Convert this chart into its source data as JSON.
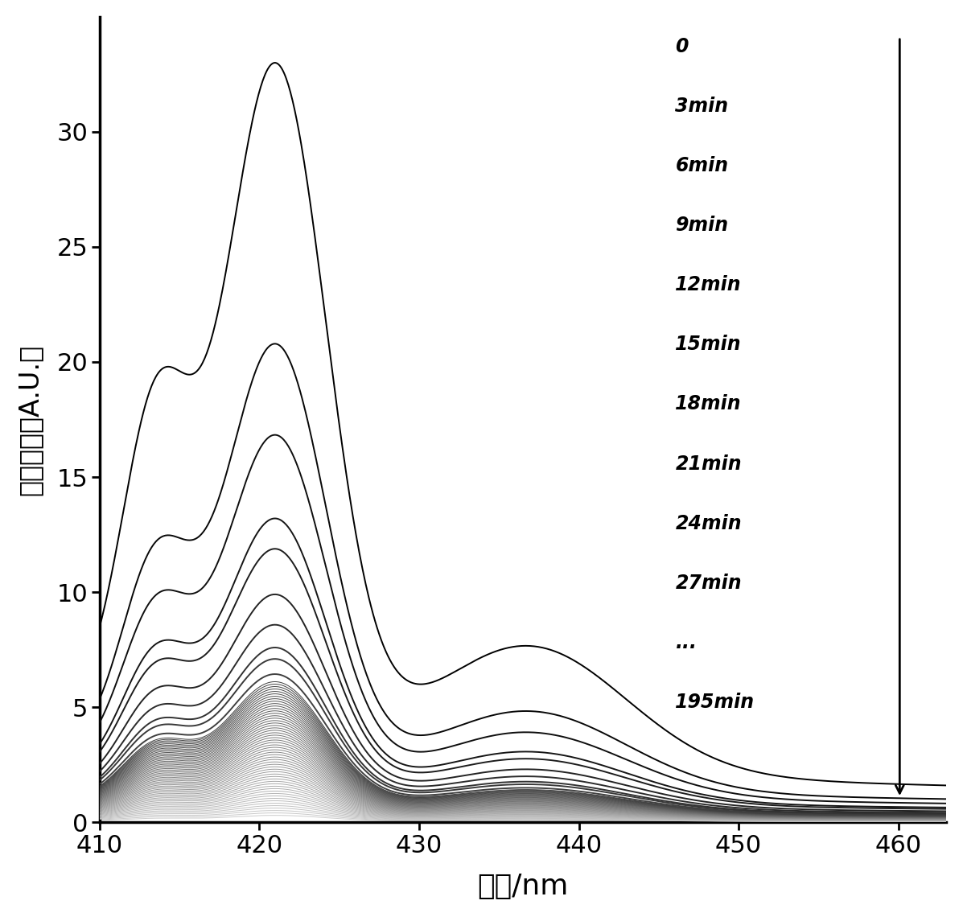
{
  "xlabel": "波长/nm",
  "ylabel": "荧光强度（A.U.）",
  "xmin": 410,
  "xmax": 463,
  "ymin": 0,
  "ymax": 35,
  "yticks": [
    0,
    5,
    10,
    15,
    20,
    25,
    30
  ],
  "xticks": [
    410,
    420,
    430,
    440,
    450,
    460
  ],
  "legend_labels": [
    "0",
    "3min",
    "6min",
    "9min",
    "12min",
    "15min",
    "18min",
    "21min",
    "24min",
    "27min",
    "...",
    "195min"
  ],
  "num_labeled_curves": 10,
  "num_total_curves": 66,
  "peak_t0": 33.0,
  "background_color": "#ffffff"
}
